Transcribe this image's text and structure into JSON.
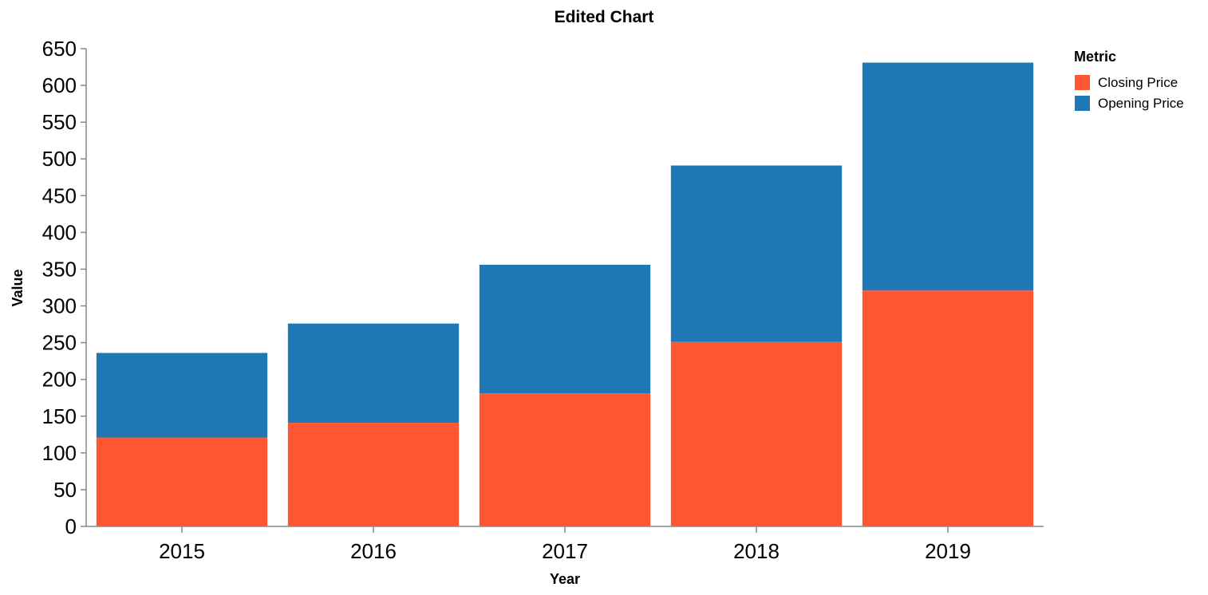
{
  "chart_data": {
    "type": "bar",
    "stacked": true,
    "title": "Edited Chart",
    "xlabel": "Year",
    "ylabel": "Value",
    "categories": [
      "2015",
      "2016",
      "2017",
      "2018",
      "2019"
    ],
    "series": [
      {
        "name": "Closing Price",
        "color": "#ff5733",
        "values": [
          121,
          141,
          181,
          251,
          321
        ]
      },
      {
        "name": "Opening Price",
        "color": "#1f77b4",
        "values": [
          115,
          135,
          175,
          240,
          310
        ]
      }
    ],
    "ylim": [
      0,
      650
    ],
    "yticks": [
      0,
      50,
      100,
      150,
      200,
      250,
      300,
      350,
      400,
      450,
      500,
      550,
      600,
      650
    ],
    "grid": false,
    "legend": {
      "title": "Metric",
      "placement": "top-right"
    }
  }
}
